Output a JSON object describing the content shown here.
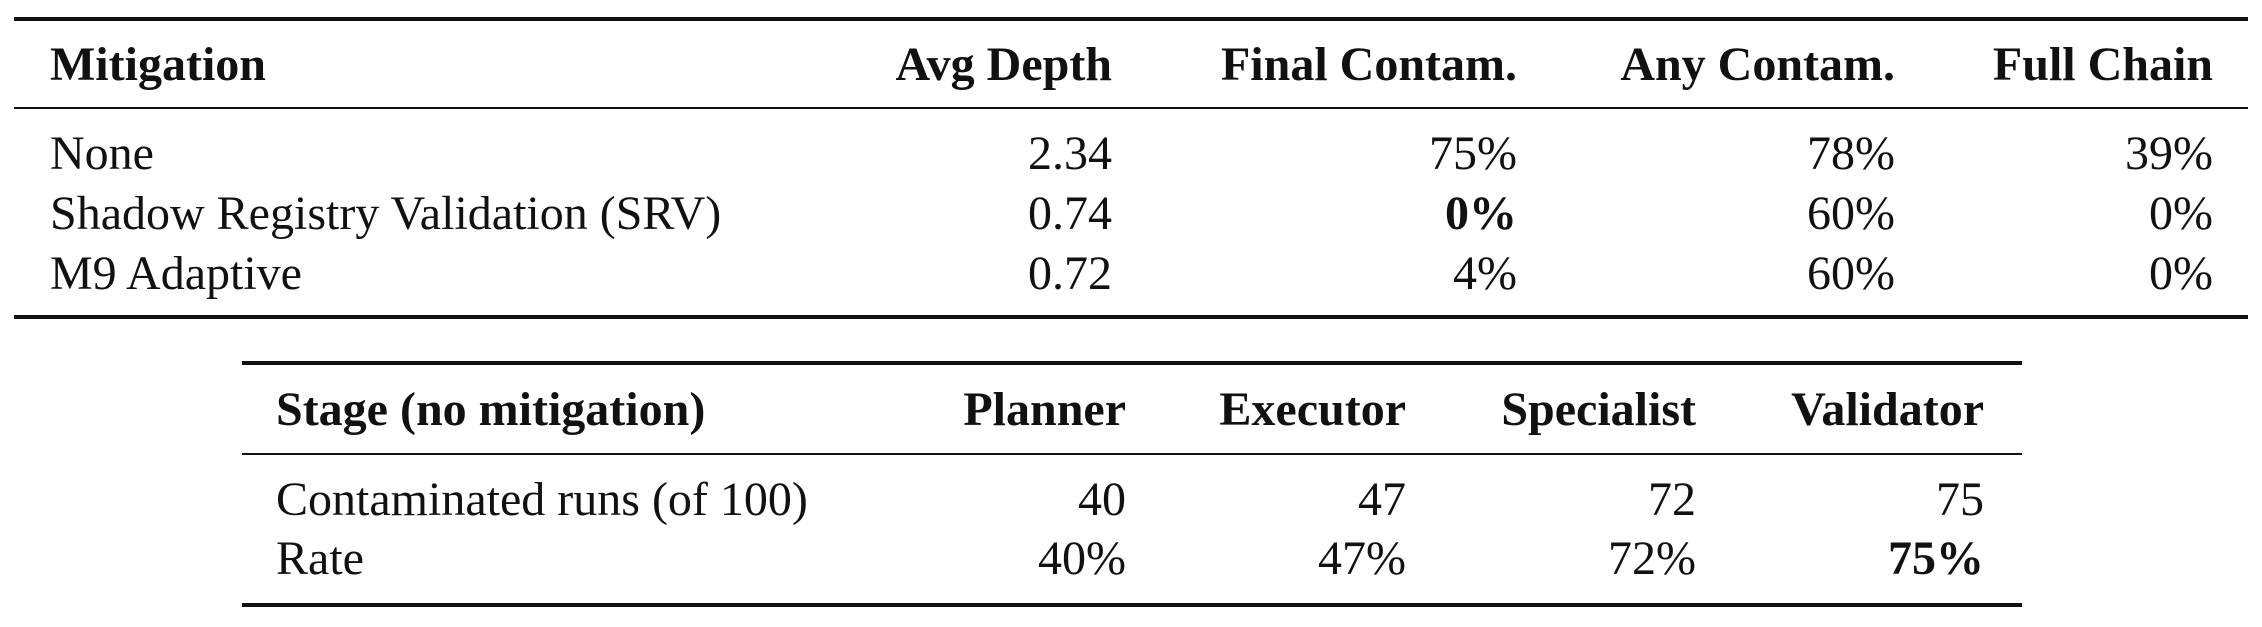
{
  "table1": {
    "headers": [
      "Mitigation",
      "Avg Depth",
      "Final Contam.",
      "Any Contam.",
      "Full Chain"
    ],
    "rows": [
      {
        "mitigation": "None",
        "avg_depth": "2.34",
        "final_contam": "75%",
        "any_contam": "78%",
        "full_chain": "39%"
      },
      {
        "mitigation": "Shadow Registry Validation (SRV)",
        "avg_depth": "0.74",
        "final_contam": "0%",
        "any_contam": "60%",
        "full_chain": "0%"
      },
      {
        "mitigation": "M9 Adaptive",
        "avg_depth": "0.72",
        "final_contam": "4%",
        "any_contam": "60%",
        "full_chain": "0%"
      }
    ]
  },
  "table2": {
    "headers": [
      "Stage (no mitigation)",
      "Planner",
      "Executor",
      "Specialist",
      "Validator"
    ],
    "rows": [
      {
        "label": "Contaminated runs (of 100)",
        "planner": "40",
        "executor": "47",
        "specialist": "72",
        "validator": "75"
      },
      {
        "label": "Rate",
        "planner": "40%",
        "executor": "47%",
        "specialist": "72%",
        "validator": "75%"
      }
    ]
  }
}
